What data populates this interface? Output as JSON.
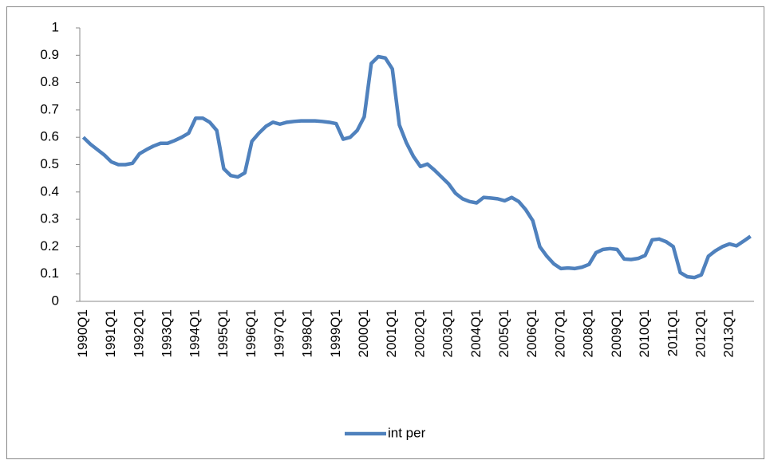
{
  "chart_data": {
    "type": "line",
    "categories": [
      "1990Q1",
      null,
      null,
      null,
      "1991Q1",
      null,
      null,
      null,
      "1992Q1",
      null,
      null,
      null,
      "1993Q1",
      null,
      null,
      null,
      "1994Q1",
      null,
      null,
      null,
      "1995Q1",
      null,
      null,
      null,
      "1996Q1",
      null,
      null,
      null,
      "1997Q1",
      null,
      null,
      null,
      "1998Q1",
      null,
      null,
      null,
      "1999Q1",
      null,
      null,
      null,
      "2000Q1",
      null,
      null,
      null,
      "2001Q1",
      null,
      null,
      null,
      "2002Q1",
      null,
      null,
      null,
      "2003Q1",
      null,
      null,
      null,
      "2004Q1",
      null,
      null,
      null,
      "2005Q1",
      null,
      null,
      null,
      "2006Q1",
      null,
      null,
      null,
      "2007Q1",
      null,
      null,
      null,
      "2008Q1",
      null,
      null,
      null,
      "2009Q1",
      null,
      null,
      null,
      "2010Q1",
      null,
      null,
      null,
      "2011Q1",
      null,
      null,
      null,
      "2012Q1",
      null,
      null,
      null,
      "2013Q1",
      null,
      null,
      null
    ],
    "series": [
      {
        "name": "int per",
        "color": "#4f81bd",
        "values": [
          0.6,
          0.575,
          0.555,
          0.535,
          0.51,
          0.5,
          0.5,
          0.505,
          0.54,
          0.555,
          0.568,
          0.578,
          0.578,
          0.588,
          0.6,
          0.615,
          0.67,
          0.67,
          0.655,
          0.625,
          0.485,
          0.46,
          0.455,
          0.47,
          0.585,
          0.615,
          0.64,
          0.655,
          0.648,
          0.655,
          0.658,
          0.66,
          0.66,
          0.66,
          0.658,
          0.655,
          0.65,
          0.593,
          0.6,
          0.625,
          0.675,
          0.87,
          0.895,
          0.89,
          0.85,
          0.645,
          0.58,
          0.53,
          0.493,
          0.502,
          0.48,
          0.455,
          0.43,
          0.395,
          0.375,
          0.365,
          0.36,
          0.38,
          0.378,
          0.375,
          0.368,
          0.38,
          0.365,
          0.335,
          0.295,
          0.2,
          0.165,
          0.137,
          0.12,
          0.122,
          0.12,
          0.125,
          0.135,
          0.178,
          0.19,
          0.193,
          0.19,
          0.155,
          0.153,
          0.157,
          0.168,
          0.225,
          0.228,
          0.218,
          0.2,
          0.105,
          0.09,
          0.087,
          0.097,
          0.165,
          0.185,
          0.2,
          0.21,
          0.203,
          0.22,
          0.238
        ]
      }
    ],
    "ylim": [
      0,
      1
    ],
    "yticks": [
      0,
      0.1,
      0.2,
      0.3,
      0.4,
      0.5,
      0.6,
      0.7,
      0.8,
      0.9,
      1
    ],
    "legend": "bottom"
  }
}
